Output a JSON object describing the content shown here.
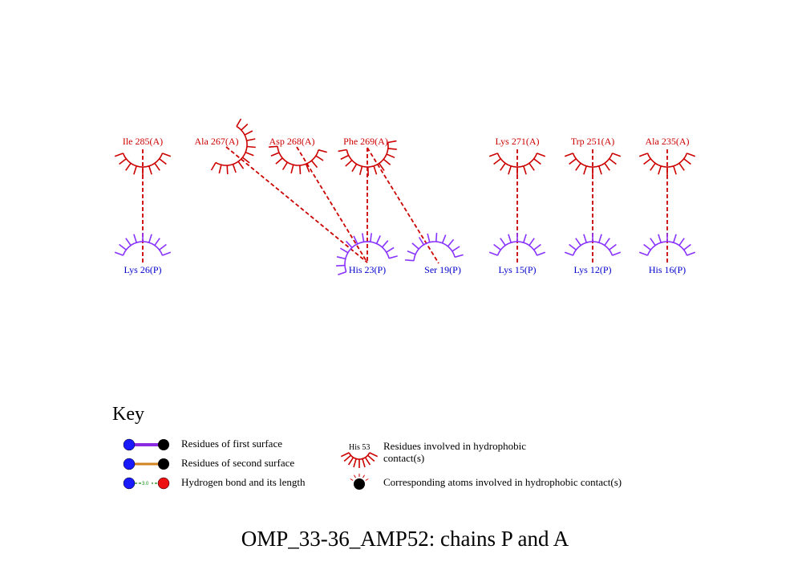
{
  "title": "OMP_33-36_AMP52: chains P and A",
  "colors": {
    "chain_a": "#cc0000",
    "chain_p": "#0000cc",
    "chain_p_arc": "#8833ff",
    "contact": "#cc0000",
    "first_surface_bond": "#8a2be2",
    "second_surface_bond": "#d2821e",
    "hbond": "#0a8a0a"
  },
  "residues_a": [
    {
      "id": "ile285",
      "label": "Ile 285(A)"
    },
    {
      "id": "ala267",
      "label": "Ala 267(A)"
    },
    {
      "id": "asp268",
      "label": "Asp 268(A)"
    },
    {
      "id": "phe269",
      "label": "Phe 269(A)"
    },
    {
      "id": "lys271",
      "label": "Lys 271(A)"
    },
    {
      "id": "trp251",
      "label": "Trp 251(A)"
    },
    {
      "id": "ala235",
      "label": "Ala 235(A)"
    }
  ],
  "residues_p": [
    {
      "id": "lys26",
      "label": "Lys 26(P)"
    },
    {
      "id": "his23",
      "label": "His 23(P)"
    },
    {
      "id": "ser19",
      "label": "Ser 19(P)"
    },
    {
      "id": "lys15",
      "label": "Lys 15(P)"
    },
    {
      "id": "lys12",
      "label": "Lys 12(P)"
    },
    {
      "id": "his16",
      "label": "His 16(P)"
    }
  ],
  "contacts": [
    {
      "from": "ile285",
      "to": "lys26"
    },
    {
      "from": "ala267",
      "to": "his23"
    },
    {
      "from": "asp268",
      "to": "his23"
    },
    {
      "from": "phe269",
      "to": "his23"
    },
    {
      "from": "phe269",
      "to": "ser19"
    },
    {
      "from": "lys271",
      "to": "lys15"
    },
    {
      "from": "trp251",
      "to": "lys12"
    },
    {
      "from": "ala235",
      "to": "his16"
    }
  ],
  "key": {
    "title": "Key",
    "first_surface": "Residues of first surface",
    "second_surface": "Residues of second surface",
    "hbond": "Hydrogen bond and its length",
    "hbond_length": "3.0",
    "hydrophobic_example": "His 53",
    "hydrophobic_line1": "Residues involved in hydrophobic",
    "hydrophobic_line2": "contact(s)",
    "corresponding_atoms": "Corresponding atoms involved in hydrophobic contact(s)"
  }
}
